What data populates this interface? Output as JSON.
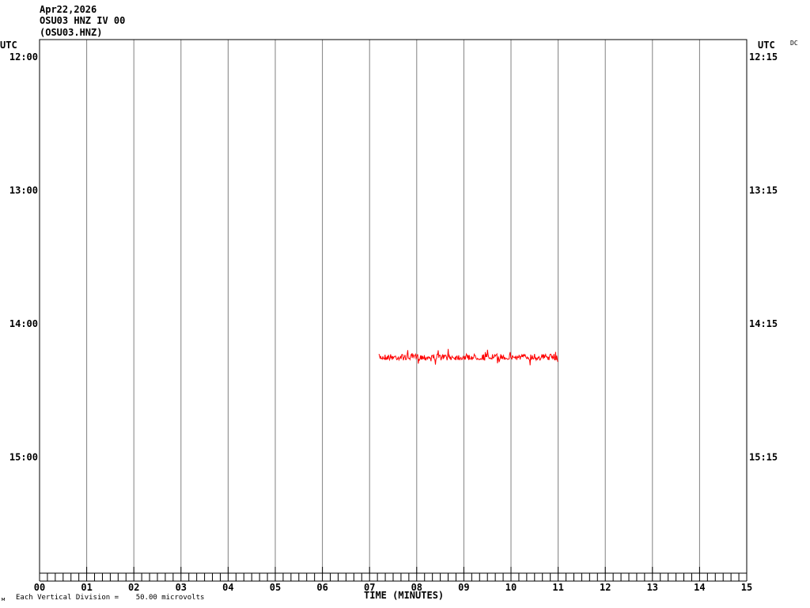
{
  "header": {
    "date": "Apr22,2026",
    "station": "OSU03 HNZ IV 00",
    "channel": "(OSU03.HNZ)",
    "dc_label": "DC"
  },
  "footer": {
    "scale_text": "Each Vertical Division =    50.00 microvolts",
    "corner_mark": "м"
  },
  "colors": {
    "trace": "#ff0000",
    "grid": "#808080",
    "axis": "#000000"
  },
  "chart_data": {
    "type": "line",
    "subtype": "helicorder",
    "xlabel": "TIME (MINUTES)",
    "xlim": [
      0,
      15
    ],
    "x_tick_labels": [
      "00",
      "01",
      "02",
      "03",
      "04",
      "05",
      "06",
      "07",
      "08",
      "09",
      "10",
      "11",
      "12",
      "13",
      "14",
      "15"
    ],
    "left_axis_title": "UTC",
    "right_axis_title": "UTC",
    "left_row_labels": [
      "12:00",
      "13:00",
      "14:00",
      "15:00"
    ],
    "right_row_labels": [
      "12:15",
      "13:15",
      "14:15",
      "15:15"
    ],
    "row_minutes": 15,
    "grid": true,
    "trace": {
      "row_start": "14:15",
      "start_minute": 7.2,
      "end_minute": 11.0,
      "color": "#ff0000"
    }
  }
}
